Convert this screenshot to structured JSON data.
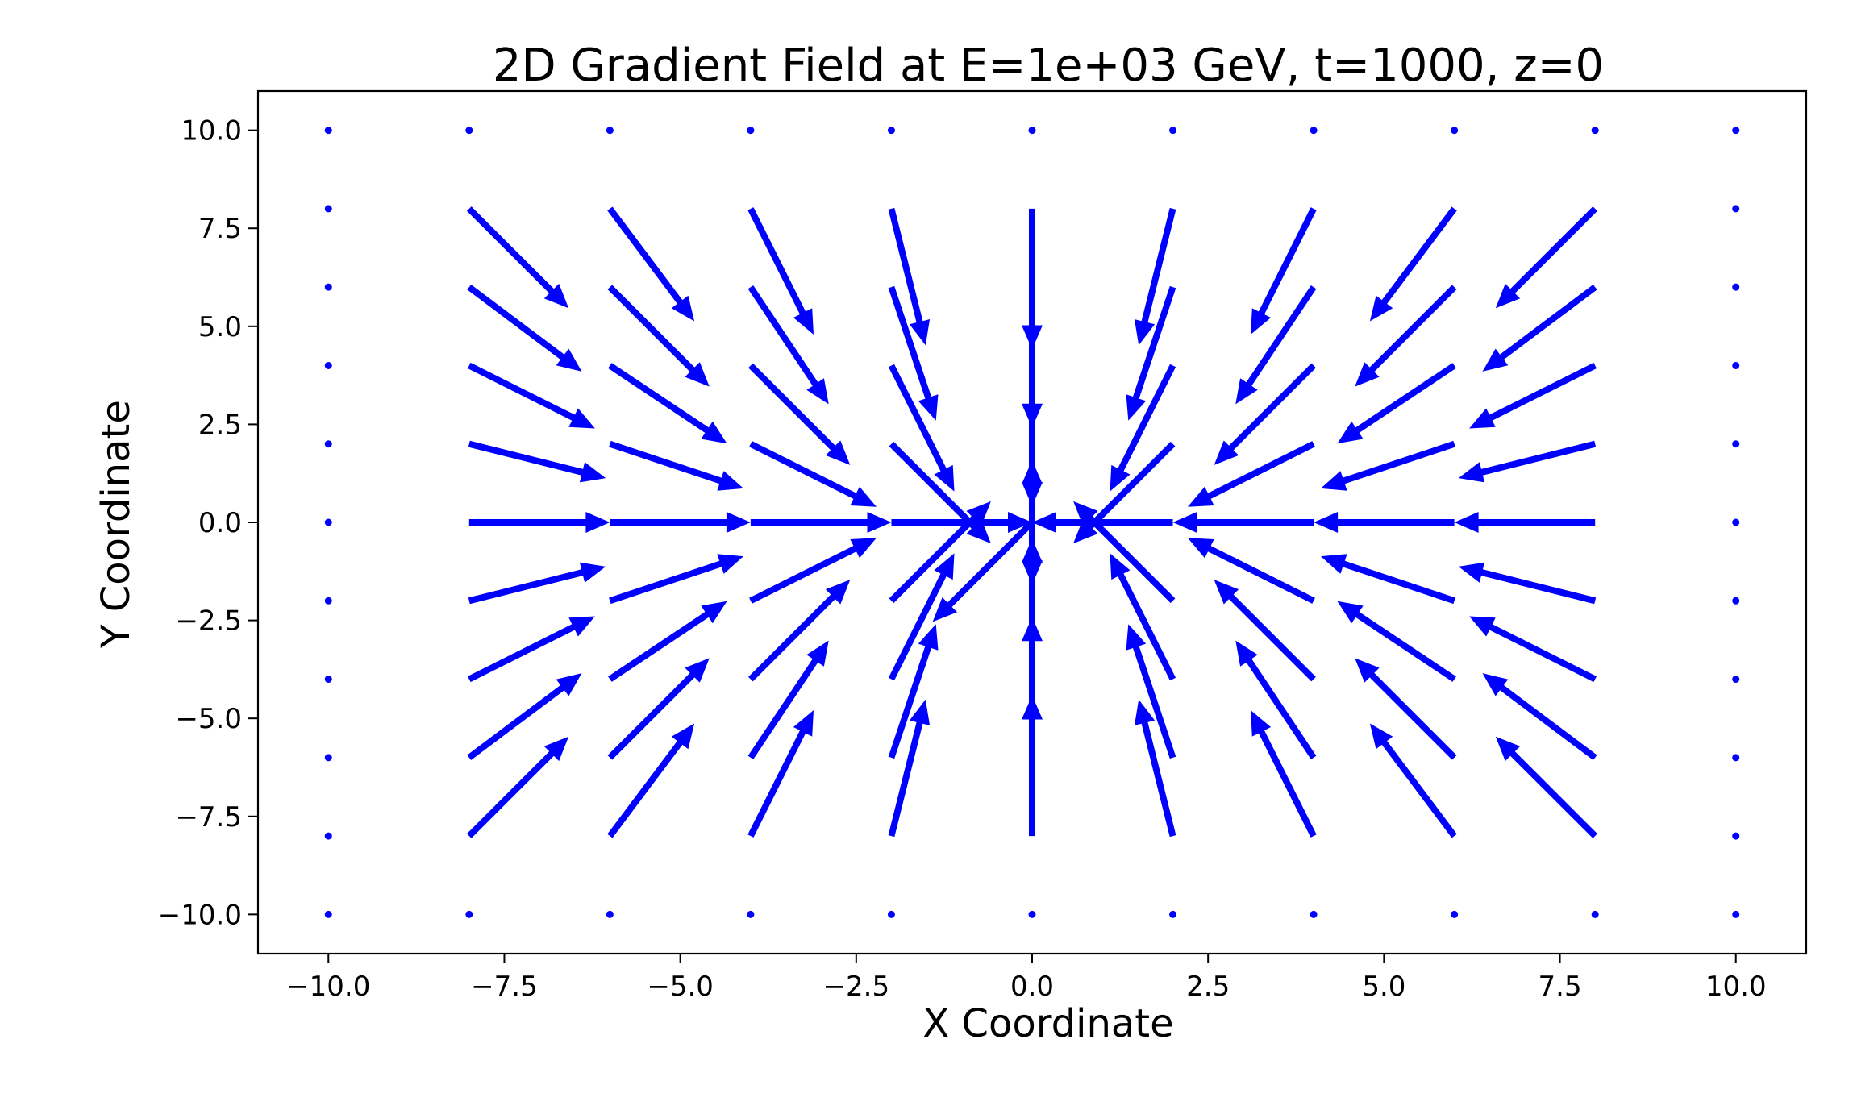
{
  "chart_data": {
    "type": "quiver",
    "title": "2D Gradient Field at E=1e+03 GeV, t=1000, z=0",
    "xlabel": "X Coordinate",
    "ylabel": "Y Coordinate",
    "xlim": [
      -11,
      11
    ],
    "ylim": [
      -11,
      11
    ],
    "x_ticks": [
      -10.0,
      -7.5,
      -5.0,
      -2.5,
      0.0,
      2.5,
      5.0,
      7.5,
      10.0
    ],
    "x_tick_labels": [
      "−10.0",
      "−7.5",
      "−5.0",
      "−2.5",
      "0.0",
      "2.5",
      "5.0",
      "7.5",
      "10.0"
    ],
    "y_ticks": [
      10.0,
      7.5,
      5.0,
      2.5,
      0.0,
      -2.5,
      -5.0,
      -7.5,
      -10.0
    ],
    "y_tick_labels": [
      "10.0",
      "7.5",
      "5.0",
      "2.5",
      "0.0",
      "−2.5",
      "−5.0",
      "−7.5",
      "−10.0"
    ],
    "grid": false,
    "color": "#0000ff",
    "grid_x": [
      -10,
      -8,
      -6,
      -4,
      -2,
      0,
      2,
      4,
      6,
      8,
      10
    ],
    "grid_y": [
      -10,
      -8,
      -6,
      -4,
      -2,
      0,
      2,
      4,
      6,
      8,
      10
    ],
    "vector_field": "inward unit-length field toward the origin (u = -x/r, v = -y/r) on the interior of the grid; boundary points (|x|=10 or |y|=10) have zero vectors drawn as dots; the vector at the origin points toward (-1,-1)",
    "arrow_length": 2.0,
    "origin_vector": [
      -0.707,
      -0.707
    ]
  }
}
